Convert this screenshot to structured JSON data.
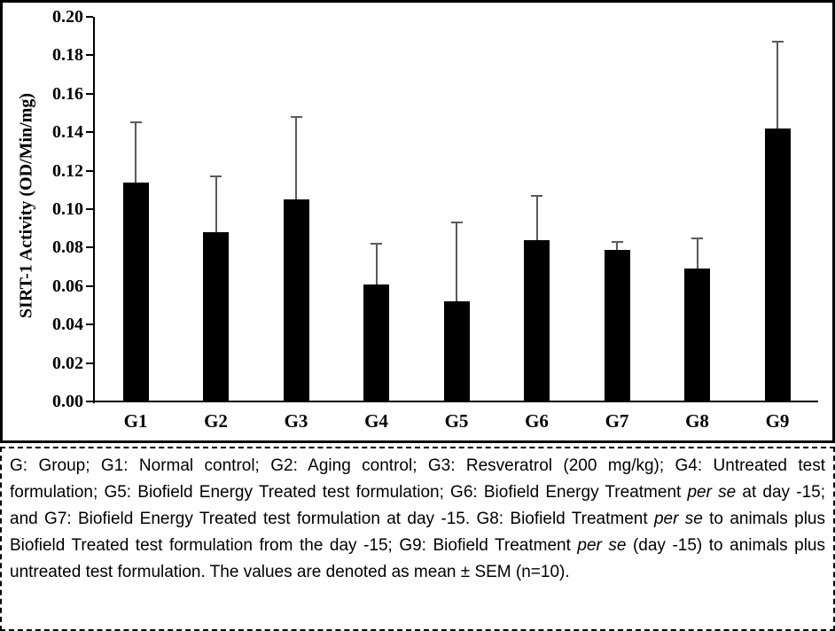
{
  "figure": {
    "caption_segments": [
      {
        "text": "G: Group; G1: Normal control; G2:  Aging control; G3: Resveratrol (200 mg/kg); G4: Untreated test formulation; G5: Biofield Energy Treated test formulation; G6: Biofield Energy Treatment ",
        "italic": false
      },
      {
        "text": "per se",
        "italic": true
      },
      {
        "text": " at day -15; and G7: Biofield Energy Treated test formulation at day -15. G8: Biofield Treatment ",
        "italic": false
      },
      {
        "text": "per se",
        "italic": true
      },
      {
        "text": " to animals plus Biofield Treated test formulation from the day -15; G9: Biofield Treatment ",
        "italic": false
      },
      {
        "text": "per se",
        "italic": true
      },
      {
        "text": " (day -15) to animals plus untreated test formulation. The values are denoted as mean ± SEM (n=10).",
        "italic": false
      }
    ]
  },
  "chart_data": {
    "type": "bar",
    "categories": [
      "G1",
      "G2",
      "G3",
      "G4",
      "G5",
      "G6",
      "G7",
      "G8",
      "G9"
    ],
    "values": [
      0.114,
      0.088,
      0.105,
      0.061,
      0.052,
      0.084,
      0.079,
      0.069,
      0.142
    ],
    "sem_upper": [
      0.031,
      0.029,
      0.043,
      0.021,
      0.041,
      0.023,
      0.004,
      0.016,
      0.045
    ],
    "title": "",
    "xlabel": "",
    "ylabel": "SIRT-1 Activity  (OD/Min/mg)",
    "ylim": [
      0,
      0.2
    ],
    "ytick_step": 0.02,
    "ytick_labels": [
      "0.00",
      "0.02",
      "0.04",
      "0.06",
      "0.08",
      "0.10",
      "0.12",
      "0.14",
      "0.16",
      "0.18",
      "0.20"
    ],
    "grid": false,
    "legend": null,
    "bar_color": "#000000",
    "error_bar_color": "#5a5a5a",
    "error_bars": "upper-only"
  }
}
